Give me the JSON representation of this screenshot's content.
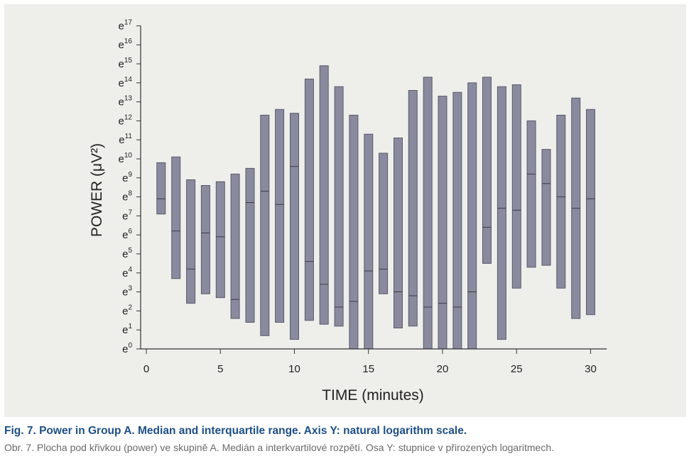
{
  "caption": {
    "title": "Fig. 7. Power in Group A. Median and interquartile range. Axis Y: natural logarithm scale.",
    "subtitle": "Obr. 7. Plocha pod křivkou (power) ve skupině A. Medián a interkvartilové rozpětí. Osa Y: stupnice v přirozených logaritmech."
  },
  "chart_data": {
    "type": "box",
    "xlabel": "TIME  (minutes)",
    "ylabel": "POWER  (μV²)",
    "y_scale": "natural-log",
    "y_tick_base": "e",
    "x_ticks": [
      0,
      5,
      10,
      15,
      20,
      25,
      30
    ],
    "y_ticks": [
      0,
      1,
      2,
      3,
      4,
      5,
      6,
      7,
      8,
      9,
      10,
      11,
      12,
      13,
      14,
      15,
      16,
      17
    ],
    "xlim": [
      -0.4,
      30.8
    ],
    "ylim_ln": [
      0,
      17
    ],
    "grid": false,
    "colors": {
      "box_fill": "#8a8a9e",
      "box_stroke": "#5a5a6e",
      "panel": "#eeeeeb",
      "axis": "#333333"
    },
    "boxes": [
      {
        "x": 1,
        "q1": 7.1,
        "median": 7.9,
        "q3": 9.8
      },
      {
        "x": 2,
        "q1": 3.7,
        "median": 6.2,
        "q3": 10.1
      },
      {
        "x": 3,
        "q1": 2.4,
        "median": 4.2,
        "q3": 8.9
      },
      {
        "x": 4,
        "q1": 2.9,
        "median": 6.1,
        "q3": 8.6
      },
      {
        "x": 5,
        "q1": 2.7,
        "median": 5.9,
        "q3": 8.8
      },
      {
        "x": 6,
        "q1": 1.6,
        "median": 2.6,
        "q3": 9.2
      },
      {
        "x": 7,
        "q1": 1.4,
        "median": 7.7,
        "q3": 9.5
      },
      {
        "x": 8,
        "q1": 0.7,
        "median": 8.3,
        "q3": 12.3
      },
      {
        "x": 9,
        "q1": 1.4,
        "median": 7.6,
        "q3": 12.6
      },
      {
        "x": 10,
        "q1": 0.5,
        "median": 9.6,
        "q3": 12.4
      },
      {
        "x": 11,
        "q1": 1.5,
        "median": 4.6,
        "q3": 14.2
      },
      {
        "x": 12,
        "q1": 1.3,
        "median": 3.4,
        "q3": 14.9
      },
      {
        "x": 13,
        "q1": 1.2,
        "median": 2.2,
        "q3": 13.8
      },
      {
        "x": 14,
        "q1": 0,
        "median": 2.5,
        "q3": 12.3
      },
      {
        "x": 15,
        "q1": 0,
        "median": 4.1,
        "q3": 11.3
      },
      {
        "x": 16,
        "q1": 2.9,
        "median": 4.2,
        "q3": 10.3
      },
      {
        "x": 17,
        "q1": 1.1,
        "median": 3.0,
        "q3": 11.1
      },
      {
        "x": 18,
        "q1": 1.2,
        "median": 2.8,
        "q3": 13.6
      },
      {
        "x": 19,
        "q1": 0,
        "median": 2.2,
        "q3": 14.3
      },
      {
        "x": 20,
        "q1": 0,
        "median": 2.4,
        "q3": 13.3
      },
      {
        "x": 21,
        "q1": 0,
        "median": 2.2,
        "q3": 13.5
      },
      {
        "x": 22,
        "q1": 0,
        "median": 3.0,
        "q3": 14.0
      },
      {
        "x": 23,
        "q1": 4.5,
        "median": 6.4,
        "q3": 14.3
      },
      {
        "x": 24,
        "q1": 0.5,
        "median": 7.4,
        "q3": 13.8
      },
      {
        "x": 25,
        "q1": 3.2,
        "median": 7.3,
        "q3": 13.9
      },
      {
        "x": 26,
        "q1": 4.3,
        "median": 9.2,
        "q3": 12.0
      },
      {
        "x": 27,
        "q1": 4.4,
        "median": 8.7,
        "q3": 10.5
      },
      {
        "x": 28,
        "q1": 3.2,
        "median": 8.0,
        "q3": 12.3
      },
      {
        "x": 29,
        "q1": 1.6,
        "median": 7.4,
        "q3": 13.2
      },
      {
        "x": 30,
        "q1": 1.8,
        "median": 7.9,
        "q3": 12.6
      }
    ]
  }
}
